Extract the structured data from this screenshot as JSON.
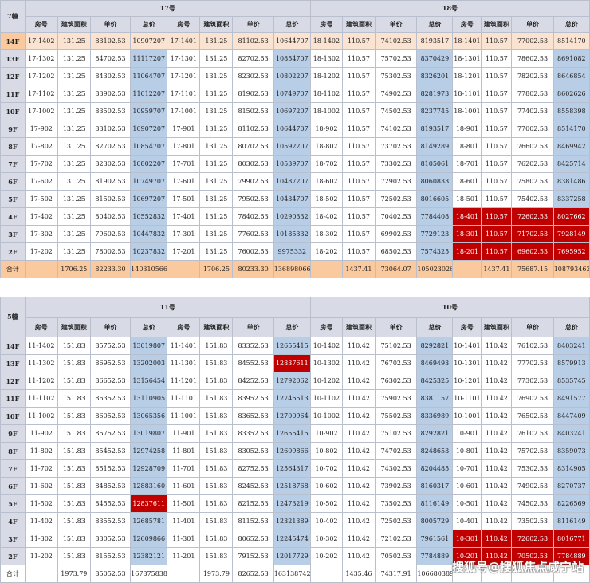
{
  "table1": {
    "corner": "7幢",
    "buildings": [
      "17号",
      "18号"
    ],
    "headers": [
      "房号",
      "建筑面积",
      "单价",
      "总价",
      "房号",
      "建筑面积",
      "单价",
      "总价",
      "房号",
      "建筑面积",
      "单价",
      "总价",
      "房号",
      "建筑面积",
      "单价",
      "总价"
    ],
    "rows": [
      {
        "floor": "14F",
        "cells": [
          "17-1402",
          "131.25",
          "83102.53",
          "10907207",
          "17-1401",
          "131.25",
          "81102.53",
          "10644707",
          "18-1402",
          "110.57",
          "74102.53",
          "8193517",
          "18-1401",
          "110.57",
          "77002.53",
          "8514170"
        ]
      },
      {
        "floor": "13F",
        "cells": [
          "17-1302",
          "131.25",
          "84702.53",
          "11117207",
          "17-1301",
          "131.25",
          "82702.53",
          "10854707",
          "18-1302",
          "110.57",
          "75702.53",
          "8370429",
          "18-1301",
          "110.57",
          "78602.53",
          "8691082"
        ]
      },
      {
        "floor": "12F",
        "cells": [
          "17-1202",
          "131.25",
          "84302.53",
          "11064707",
          "17-1201",
          "131.25",
          "82302.53",
          "10802207",
          "18-1202",
          "110.57",
          "75302.53",
          "8326201",
          "18-1201",
          "110.57",
          "78202.53",
          "8646854"
        ]
      },
      {
        "floor": "11F",
        "cells": [
          "17-1102",
          "131.25",
          "83902.53",
          "11012207",
          "17-1101",
          "131.25",
          "81902.53",
          "10749707",
          "18-1102",
          "110.57",
          "74902.53",
          "8281973",
          "18-1101",
          "110.57",
          "77802.53",
          "8602626"
        ]
      },
      {
        "floor": "10F",
        "cells": [
          "17-1002",
          "131.25",
          "83502.53",
          "10959707",
          "17-1001",
          "131.25",
          "81502.53",
          "10697207",
          "18-1002",
          "110.57",
          "74502.53",
          "8237745",
          "18-1001",
          "110.57",
          "77402.53",
          "8558398"
        ]
      },
      {
        "floor": "9F",
        "cells": [
          "17-902",
          "131.25",
          "83102.53",
          "10907207",
          "17-901",
          "131.25",
          "81102.53",
          "10644707",
          "18-902",
          "110.57",
          "74102.53",
          "8193517",
          "18-901",
          "110.57",
          "77002.53",
          "8514170"
        ]
      },
      {
        "floor": "8F",
        "cells": [
          "17-802",
          "131.25",
          "82702.53",
          "10854707",
          "17-801",
          "131.25",
          "80702.53",
          "10592207",
          "18-802",
          "110.57",
          "73702.53",
          "8149289",
          "18-801",
          "110.57",
          "76602.53",
          "8469942"
        ]
      },
      {
        "floor": "7F",
        "cells": [
          "17-702",
          "131.25",
          "82302.53",
          "10802207",
          "17-701",
          "131.25",
          "80302.53",
          "10539707",
          "18-702",
          "110.57",
          "73302.53",
          "8105061",
          "18-701",
          "110.57",
          "76202.53",
          "8425714"
        ]
      },
      {
        "floor": "6F",
        "cells": [
          "17-602",
          "131.25",
          "81902.53",
          "10749707",
          "17-601",
          "131.25",
          "79902.53",
          "10487207",
          "18-602",
          "110.57",
          "72902.53",
          "8060833",
          "18-601",
          "110.57",
          "75802.53",
          "8381486"
        ]
      },
      {
        "floor": "5F",
        "cells": [
          "17-502",
          "131.25",
          "81502.53",
          "10697207",
          "17-501",
          "131.25",
          "79502.53",
          "10434707",
          "18-502",
          "110.57",
          "72502.53",
          "8016605",
          "18-501",
          "110.57",
          "75402.53",
          "8337258"
        ]
      },
      {
        "floor": "4F",
        "cells": [
          "17-402",
          "131.25",
          "80402.53",
          "10552832",
          "17-401",
          "131.25",
          "78402.53",
          "10290332",
          "18-402",
          "110.57",
          "70402.53",
          "7784408",
          "18-401",
          "110.57",
          "72602.53",
          "8027662"
        ]
      },
      {
        "floor": "3F",
        "cells": [
          "17-302",
          "131.25",
          "79602.53",
          "10447832",
          "17-301",
          "131.25",
          "77602.53",
          "10185332",
          "18-302",
          "110.57",
          "69902.53",
          "7729123",
          "18-301",
          "110.57",
          "71702.53",
          "7928149"
        ]
      },
      {
        "floor": "2F",
        "cells": [
          "17-202",
          "131.25",
          "78002.53",
          "10237832",
          "17-201",
          "131.25",
          "76002.53",
          "9975332",
          "18-202",
          "110.57",
          "68502.53",
          "7574325",
          "18-201",
          "110.57",
          "69602.53",
          "7695952"
        ]
      }
    ],
    "total": {
      "label": "合计",
      "cells": [
        "",
        "1706.25",
        "82233.30",
        "140310566",
        "",
        "1706.25",
        "80233.30",
        "136898066",
        "",
        "1437.41",
        "73064.07",
        "105023026",
        "",
        "1437.41",
        "75687.15",
        "108793463"
      ]
    }
  },
  "table2": {
    "corner": "5幢",
    "buildings": [
      "11号",
      "10号"
    ],
    "headers": [
      "房号",
      "建筑面积",
      "单价",
      "总价",
      "房号",
      "建筑面积",
      "单价",
      "总价",
      "房号",
      "建筑面积",
      "单价",
      "总价",
      "房号",
      "建筑面积",
      "单价",
      "总价"
    ],
    "rows": [
      {
        "floor": "14F",
        "cells": [
          "11-1402",
          "151.83",
          "85752.53",
          "13019807",
          "11-1401",
          "151.83",
          "83352.53",
          "12655415",
          "10-1402",
          "110.42",
          "75102.53",
          "8292821",
          "10-1401",
          "110.42",
          "76102.53",
          "8403241"
        ]
      },
      {
        "floor": "13F",
        "cells": [
          "11-1302",
          "151.83",
          "86952.53",
          "13202003",
          "11-1301",
          "151.83",
          "84552.53",
          "12837611",
          "10-1302",
          "110.42",
          "76702.53",
          "8469493",
          "10-1301",
          "110.42",
          "77702.53",
          "8579913"
        ]
      },
      {
        "floor": "12F",
        "cells": [
          "11-1202",
          "151.83",
          "86652.53",
          "13156454",
          "11-1201",
          "151.83",
          "84252.53",
          "12792062",
          "10-1202",
          "110.42",
          "76302.53",
          "8425325",
          "10-1201",
          "110.42",
          "77302.53",
          "8535745"
        ]
      },
      {
        "floor": "11F",
        "cells": [
          "11-1102",
          "151.83",
          "86352.53",
          "13110905",
          "11-1101",
          "151.83",
          "83952.53",
          "12746513",
          "10-1102",
          "110.42",
          "75902.53",
          "8381157",
          "10-1101",
          "110.42",
          "76902.53",
          "8491577"
        ]
      },
      {
        "floor": "10F",
        "cells": [
          "11-1002",
          "151.83",
          "86052.53",
          "13065356",
          "11-1001",
          "151.83",
          "83652.53",
          "12700964",
          "10-1002",
          "110.42",
          "75502.53",
          "8336989",
          "10-1001",
          "110.42",
          "76502.53",
          "8447409"
        ]
      },
      {
        "floor": "9F",
        "cells": [
          "11-902",
          "151.83",
          "85752.53",
          "13019807",
          "11-901",
          "151.83",
          "83352.53",
          "12655415",
          "10-902",
          "110.42",
          "75102.53",
          "8292821",
          "10-901",
          "110.42",
          "76102.53",
          "8403241"
        ]
      },
      {
        "floor": "8F",
        "cells": [
          "11-802",
          "151.83",
          "85452.53",
          "12974258",
          "11-801",
          "151.83",
          "83052.53",
          "12609866",
          "10-802",
          "110.42",
          "74702.53",
          "8248653",
          "10-801",
          "110.42",
          "75702.53",
          "8359073"
        ]
      },
      {
        "floor": "7F",
        "cells": [
          "11-702",
          "151.83",
          "85152.53",
          "12928709",
          "11-701",
          "151.83",
          "82752.53",
          "12564317",
          "10-702",
          "110.42",
          "74302.53",
          "8204485",
          "10-701",
          "110.42",
          "75302.53",
          "8314905"
        ]
      },
      {
        "floor": "6F",
        "cells": [
          "11-602",
          "151.83",
          "84852.53",
          "12883160",
          "11-601",
          "151.83",
          "82452.53",
          "12518768",
          "10-602",
          "110.42",
          "73902.53",
          "8160317",
          "10-601",
          "110.42",
          "74902.53",
          "8270737"
        ]
      },
      {
        "floor": "5F",
        "cells": [
          "11-502",
          "151.83",
          "84552.53",
          "12837611",
          "11-501",
          "151.83",
          "82152.53",
          "12473219",
          "10-502",
          "110.42",
          "73502.53",
          "8116149",
          "10-501",
          "110.42",
          "74502.53",
          "8226569"
        ]
      },
      {
        "floor": "4F",
        "cells": [
          "11-402",
          "151.83",
          "83552.53",
          "12685781",
          "11-401",
          "151.83",
          "81152.53",
          "12321389",
          "10-402",
          "110.42",
          "72502.53",
          "8005729",
          "10-401",
          "110.42",
          "73502.53",
          "8116149"
        ]
      },
      {
        "floor": "3F",
        "cells": [
          "11-302",
          "151.83",
          "83052.53",
          "12609866",
          "11-301",
          "151.83",
          "80652.53",
          "12245474",
          "10-302",
          "110.42",
          "72102.53",
          "7961561",
          "10-301",
          "110.42",
          "72602.53",
          "8016771"
        ]
      },
      {
        "floor": "2F",
        "cells": [
          "11-202",
          "151.83",
          "81552.53",
          "12382121",
          "11-201",
          "151.83",
          "79152.53",
          "12017729",
          "10-202",
          "110.42",
          "70502.53",
          "7784889",
          "10-201",
          "110.42",
          "70502.53",
          "7784889"
        ]
      }
    ],
    "total": {
      "label": "合计",
      "cells": [
        "",
        "1973.79",
        "85052.53",
        "167875838",
        "",
        "1973.79",
        "82652.53",
        "163138742",
        "",
        "1435.46",
        "74317.91",
        "106680389",
        "",
        "",
        "",
        ""
      ]
    }
  },
  "watermark": "搜狐号@搜狐焦点咸宁站",
  "colors": {
    "header_bg": "#d8dbe6",
    "total_col_bg": "#b8cde6",
    "highlight_red": "#c00000",
    "sum_row_bg": "#fbc99e"
  }
}
